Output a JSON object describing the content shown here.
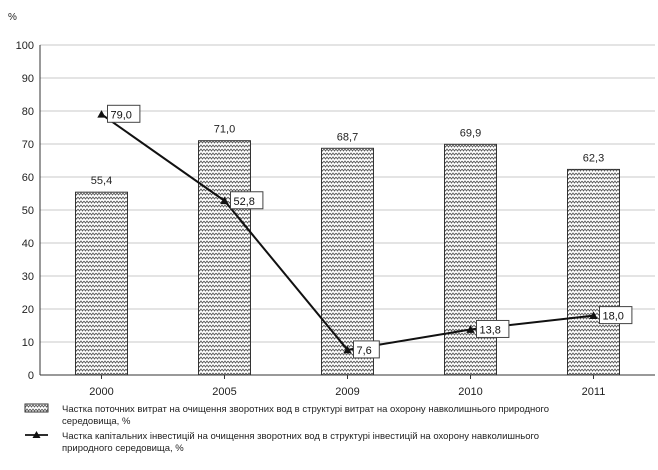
{
  "chart_data": {
    "type": "bar",
    "y_unit": "%",
    "categories": [
      "2000",
      "2005",
      "2009",
      "2010",
      "2011"
    ],
    "ylim": [
      0,
      100
    ],
    "yticks": [
      0,
      10,
      20,
      30,
      40,
      50,
      60,
      70,
      80,
      90,
      100
    ],
    "grid": true,
    "legend_position": "bottom",
    "series": [
      {
        "type": "bar",
        "name_lines": [
          "Частка поточних витрат на очищення зворотних вод в структурі витрат на охорону навколишнього природного",
          "середовища, %"
        ],
        "values": [
          55.4,
          71.0,
          68.7,
          69.9,
          62.3
        ],
        "labels": [
          "55,4",
          "71,0",
          "68,7",
          "69,9",
          "62,3"
        ]
      },
      {
        "type": "line",
        "marker": "triangle",
        "name_lines": [
          "Частка капітальних інвестицій на очищення зворотних вод в структурі інвестицій на охорону навколишнього",
          "природного середовища, %"
        ],
        "values": [
          79.0,
          52.8,
          7.6,
          13.8,
          18.0
        ],
        "labels": [
          "79,0",
          "52,8",
          "7,6",
          "13,8",
          "18,0"
        ]
      }
    ]
  }
}
